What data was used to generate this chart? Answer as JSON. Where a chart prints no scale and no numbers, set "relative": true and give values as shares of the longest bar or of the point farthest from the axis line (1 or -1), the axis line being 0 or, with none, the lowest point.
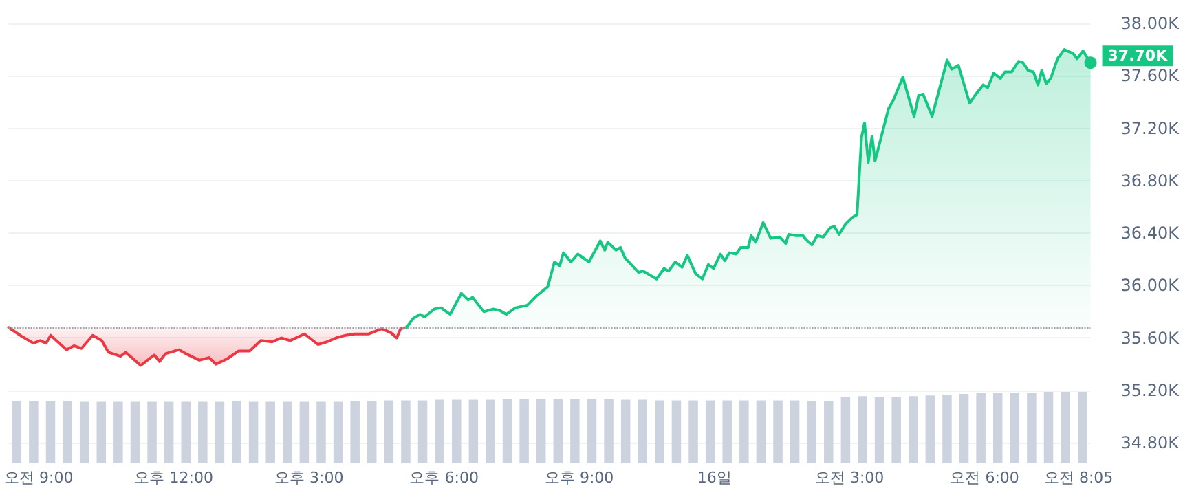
{
  "chart_data": [
    {
      "type": "area",
      "xlim": [
        "--11-15T08:20",
        "--11-16T08:21"
      ],
      "xticks": [
        {
          "value": "--11-15T09:00",
          "label": "오전 9:00"
        },
        {
          "value": "--11-15T12:00",
          "label": "오후 12:00"
        },
        {
          "value": "--11-15T15:00",
          "label": "오후 3:00"
        },
        {
          "value": "--11-15T18:00",
          "label": "오후 6:00"
        },
        {
          "value": "--11-15T21:00",
          "label": "오후 9:00"
        },
        {
          "value": "--11-16",
          "label": "16일"
        },
        {
          "value": "--11-16T03:00",
          "label": "오전 3:00"
        },
        {
          "value": "--11-16T06:00",
          "label": "오전 6:00"
        },
        {
          "value": "--11-16T08:05",
          "label": "오전 8:05"
        }
      ],
      "ylim": [
        34.8,
        38.0
      ],
      "yticks": [
        {
          "value": 34.8,
          "label": "34.80K"
        },
        {
          "value": 35.2,
          "label": "35.20K"
        },
        {
          "value": 35.6,
          "label": "35.60K"
        },
        {
          "value": 36.0,
          "label": "36.00K"
        },
        {
          "value": 36.4,
          "label": "36.40K"
        },
        {
          "value": 36.8,
          "label": "36.80K"
        },
        {
          "value": 37.2,
          "label": "37.20K"
        },
        {
          "value": 37.6,
          "label": "37.60K"
        },
        {
          "value": 38.0,
          "label": "38.00K"
        }
      ],
      "grid": "y",
      "marker": "none",
      "line_style": "solid",
      "ref_lines": [
        {
          "axis": "y",
          "value": 35.68,
          "color": "#9aa0ab",
          "line_style": "dotted"
        }
      ],
      "annotations": [
        {
          "text": "37.70K",
          "x": "--11-16T08:21",
          "y": 37.7
        }
      ],
      "series": [
        {
          "type": "line",
          "color": "#ea3943",
          "lower": [
            35.68,
            35.61,
            35.56,
            35.58,
            35.56,
            35.62,
            35.51,
            35.54,
            35.52,
            35.62,
            35.58,
            35.49,
            35.46,
            35.49,
            35.39,
            35.47,
            35.42,
            35.48,
            35.51,
            35.48,
            35.43,
            35.45,
            35.4,
            35.44,
            35.5,
            35.5,
            35.58,
            35.57,
            35.6,
            35.58,
            35.63,
            35.55,
            35.57,
            35.6,
            35.62,
            35.63,
            35.63,
            35.67,
            35.64,
            35.6,
            35.67,
            35.68
          ],
          "upper": [
            35.68,
            35.68,
            35.68,
            35.68,
            35.68,
            35.68,
            35.68,
            35.68,
            35.68,
            35.68,
            35.68,
            35.68,
            35.68,
            35.68,
            35.68,
            35.68,
            35.68,
            35.68,
            35.68,
            35.68,
            35.68,
            35.68,
            35.68,
            35.68,
            35.68,
            35.68,
            35.68,
            35.68,
            35.68,
            35.68,
            35.68,
            35.68,
            35.68,
            35.68,
            35.68,
            35.68,
            35.68,
            35.68,
            35.68,
            35.68,
            35.68,
            35.68
          ],
          "x": [
            "--11-15T08:20",
            "--11-15T08:38",
            "--11-15T08:53",
            "--11-15T09:02",
            "--11-15T09:10",
            "--11-15T09:16",
            "--11-15T09:37",
            "--11-15T09:47",
            "--11-15T09:57",
            "--11-15T10:12",
            "--11-15T10:24",
            "--11-15T10:33",
            "--11-15T10:49",
            "--11-15T10:56",
            "--11-15T11:16",
            "--11-15T11:34",
            "--11-15T11:41",
            "--11-15T11:49",
            "--11-15T12:07",
            "--11-15T12:16",
            "--11-15T12:34",
            "--11-15T12:47",
            "--11-15T12:56",
            "--11-15T13:11",
            "--11-15T13:26",
            "--11-15T13:41",
            "--11-15T13:56",
            "--11-15T14:11",
            "--11-15T14:23",
            "--11-15T14:35",
            "--11-15T14:54",
            "--11-15T15:12",
            "--11-15T15:24",
            "--11-15T15:36",
            "--11-15T15:49",
            "--11-15T16:01",
            "--11-15T16:19",
            "--11-15T16:37",
            "--11-15T16:49",
            "--11-15T16:57",
            "--11-15T17:02",
            "--11-15T17:10"
          ],
          "values": [
            35.68,
            35.61,
            35.56,
            35.58,
            35.56,
            35.62,
            35.51,
            35.54,
            35.52,
            35.62,
            35.58,
            35.49,
            35.46,
            35.49,
            35.39,
            35.47,
            35.42,
            35.48,
            35.51,
            35.48,
            35.43,
            35.45,
            35.4,
            35.44,
            35.5,
            35.5,
            35.58,
            35.57,
            35.6,
            35.58,
            35.63,
            35.55,
            35.57,
            35.6,
            35.62,
            35.63,
            35.63,
            35.67,
            35.64,
            35.6,
            35.67,
            35.68
          ]
        },
        {
          "type": "area",
          "color": "#16c784",
          "x": [
            "--11-15T17:10",
            "--11-15T17:19",
            "--11-15T17:28",
            "--11-15T17:34",
            "--11-15T17:47",
            "--11-15T17:56",
            "--11-15T18:08",
            "--11-15T18:23",
            "--11-15T18:32",
            "--11-15T18:38",
            "--11-15T18:53",
            "--11-15T19:05",
            "--11-15T19:14",
            "--11-15T19:23",
            "--11-15T19:35",
            "--11-15T19:51",
            "--11-15T20:03",
            "--11-15T20:18",
            "--11-15T20:27",
            "--11-15T20:34",
            "--11-15T20:39",
            "--11-15T20:49",
            "--11-15T20:58",
            "--11-15T21:13",
            "--11-15T21:28",
            "--11-15T21:34",
            "--11-15T21:38",
            "--11-15T21:49",
            "--11-15T21:55",
            "--11-15T22:01",
            "--11-15T22:19",
            "--11-15T22:25",
            "--11-15T22:43",
            "--11-15T22:53",
            "--11-15T22:59",
            "--11-15T23:08",
            "--11-15T23:17",
            "--11-15T23:24",
            "--11-15T23:35",
            "--11-15T23:44",
            "--11-15T23:52",
            "--11-15T23:59",
            "--11-16T00:08",
            "--11-16T00:14",
            "--11-16T00:20",
            "--11-16T00:29",
            "--11-16T00:35",
            "--11-16T00:45",
            "--11-16T00:49",
            "--11-16T00:55",
            "--11-16T01:05",
            "--11-16T01:15",
            "--11-16T01:27",
            "--11-16T01:35",
            "--11-16T01:39",
            "--11-16T01:49",
            "--11-16T01:58",
            "--11-16T02:02",
            "--11-16T02:10",
            "--11-16T02:17",
            "--11-16T02:25",
            "--11-16T02:34",
            "--11-16T02:40",
            "--11-16T02:46",
            "--11-16T02:55",
            "--11-16T03:04",
            "--11-16T03:10",
            "--11-16T03:16",
            "--11-16T03:20",
            "--11-16T03:25",
            "--11-16T03:30",
            "--11-16T03:34",
            "--11-16T03:43",
            "--11-16T03:52",
            "--11-16T03:58",
            "--11-16T04:11",
            "--11-16T04:19",
            "--11-16T04:26",
            "--11-16T04:32",
            "--11-16T04:38",
            "--11-16T04:50",
            "--11-16T05:10",
            "--11-16T05:16",
            "--11-16T05:25",
            "--11-16T05:40",
            "--11-16T05:47",
            "--11-16T05:58",
            "--11-16T06:04",
            "--11-16T06:12",
            "--11-16T06:21",
            "--11-16T06:27",
            "--11-16T06:36",
            "--11-16T06:45",
            "--11-16T06:51",
            "--11-16T06:58",
            "--11-16T07:05",
            "--11-16T07:11",
            "--11-16T07:16",
            "--11-16T07:22",
            "--11-16T07:28",
            "--11-16T07:37",
            "--11-16T07:46",
            "--11-16T07:58",
            "--11-16T08:03",
            "--11-16T08:11",
            "--11-16T08:21"
          ],
          "values": [
            35.68,
            35.75,
            35.78,
            35.76,
            35.82,
            35.83,
            35.78,
            35.94,
            35.89,
            35.91,
            35.8,
            35.82,
            35.81,
            35.78,
            35.83,
            35.85,
            35.92,
            35.99,
            36.18,
            36.15,
            36.25,
            36.18,
            36.24,
            36.18,
            36.34,
            36.27,
            36.33,
            36.27,
            36.29,
            36.21,
            36.1,
            36.11,
            36.05,
            36.13,
            36.11,
            36.18,
            36.14,
            36.23,
            36.09,
            36.05,
            36.16,
            36.13,
            36.24,
            36.19,
            36.25,
            36.24,
            36.29,
            36.29,
            36.38,
            36.33,
            36.48,
            36.36,
            36.37,
            36.32,
            36.39,
            36.38,
            36.38,
            36.35,
            36.31,
            36.38,
            36.37,
            36.44,
            36.45,
            36.39,
            36.47,
            36.52,
            36.54,
            37.13,
            37.24,
            36.94,
            37.14,
            36.95,
            37.15,
            37.35,
            37.41,
            37.59,
            37.43,
            37.29,
            37.45,
            37.46,
            37.29,
            37.72,
            37.65,
            37.68,
            37.39,
            37.45,
            37.53,
            37.51,
            37.62,
            37.58,
            37.63,
            37.63,
            37.71,
            37.7,
            37.64,
            37.63,
            37.53,
            37.64,
            37.54,
            37.58,
            37.73,
            37.8,
            37.77,
            37.73,
            37.79,
            37.7
          ]
        }
      ]
    },
    {
      "type": "bar",
      "relative": true,
      "color": "#cdd3de",
      "categories": [
        null,
        null,
        null,
        null,
        null,
        null,
        null,
        null,
        null,
        null,
        null,
        null,
        null,
        null,
        null,
        null,
        null,
        null,
        null,
        null,
        null,
        null,
        null,
        null,
        null,
        null,
        null,
        null,
        null,
        null,
        null,
        null,
        null,
        null,
        null,
        null,
        null,
        null,
        null,
        null,
        null,
        null,
        null,
        null,
        null,
        null,
        null,
        null,
        null,
        null,
        null,
        null,
        null,
        null,
        null,
        null,
        null,
        null,
        null,
        null,
        null,
        null,
        null,
        null
      ],
      "values": [
        0.87,
        0.87,
        0.87,
        0.87,
        0.86,
        0.86,
        0.86,
        0.86,
        0.86,
        0.86,
        0.86,
        0.86,
        0.86,
        0.87,
        0.86,
        0.86,
        0.86,
        0.86,
        0.86,
        0.86,
        0.87,
        0.87,
        0.88,
        0.88,
        0.88,
        0.89,
        0.89,
        0.89,
        0.89,
        0.9,
        0.9,
        0.9,
        0.9,
        0.9,
        0.9,
        0.9,
        0.89,
        0.89,
        0.88,
        0.88,
        0.88,
        0.88,
        0.88,
        0.88,
        0.88,
        0.88,
        0.88,
        0.87,
        0.87,
        0.93,
        0.94,
        0.93,
        0.93,
        0.94,
        0.95,
        0.96,
        0.97,
        0.98,
        0.98,
        0.99,
        0.98,
        1.0,
        1.0,
        1.0
      ]
    }
  ]
}
